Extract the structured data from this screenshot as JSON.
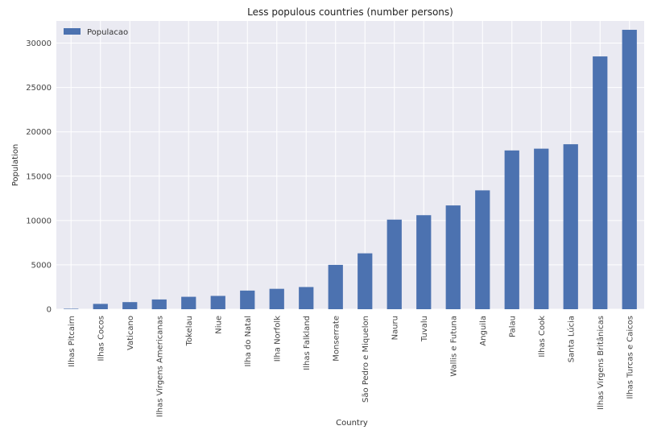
{
  "chart_data": {
    "type": "bar",
    "title": "Less populous countries (number persons)",
    "xlabel": "Country",
    "ylabel": "Population",
    "legend_position": "top-left",
    "grid": true,
    "ylim": [
      0,
      32500
    ],
    "yticks": [
      0,
      5000,
      10000,
      15000,
      20000,
      25000,
      30000
    ],
    "bar_color": "#4c72b0",
    "plot_background": "#eaeaf2",
    "categories": [
      "Ilhas Pitcairn",
      "Ilhas Cocos",
      "Vaticano",
      "Ilhas Virgens Americanas",
      "Tokelau",
      "Niue",
      "Ilha do Natal",
      "Ilha Norfolk",
      "Ilhas Falkland",
      "Monserrate",
      "São Pedro e Miquelon",
      "Nauru",
      "Tuvalu",
      "Wallis e Futuna",
      "Anguila",
      "Palau",
      "Ilhas Cook",
      "Santa Lúcia",
      "Ilhas Virgens Britânicas",
      "Ilhas Turcas e Caicos"
    ],
    "series": [
      {
        "name": "Populacao",
        "values": [
          50,
          600,
          800,
          1100,
          1400,
          1500,
          2100,
          2300,
          2500,
          5000,
          6300,
          10100,
          10600,
          11700,
          13400,
          17900,
          18100,
          18600,
          28500,
          31500
        ]
      }
    ]
  }
}
